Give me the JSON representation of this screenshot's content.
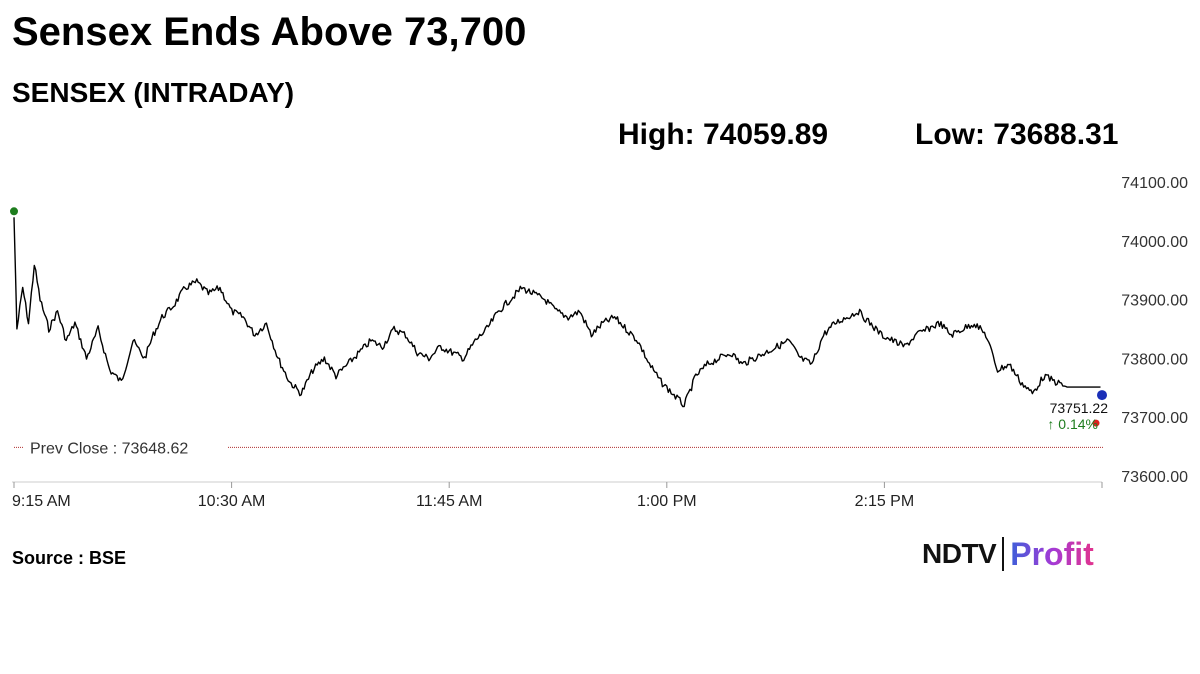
{
  "headline": "Sensex Ends Above 73,700",
  "subtitle": "SENSEX (INTRADAY)",
  "high_label": "High: 74059.89",
  "low_label": "Low: 73688.31",
  "source": "Source : BSE",
  "logo": {
    "ndtv": "NDTV",
    "profit": "Profit"
  },
  "colors": {
    "line": "#000000",
    "prev_close": "#b03030",
    "start_dot": "#1e7d1e",
    "end_dot_blue": "#1a2fb8",
    "end_dot_red": "#e02020",
    "change": "#1e7d1e"
  },
  "chart_data": {
    "type": "line",
    "xlabel": "",
    "ylabel": "",
    "ylim": [
      73600,
      74100
    ],
    "y_ticks": [
      "73600.00",
      "73700.00",
      "73800.00",
      "73900.00",
      "74000.00",
      "74100.00"
    ],
    "x_ticks": [
      "9:15 AM",
      "10:30 AM",
      "11:45 AM",
      "1:00 PM",
      "2:15 PM"
    ],
    "grid": false,
    "prev_close": 73648.62,
    "prev_close_label": "Prev Close : 73648.62",
    "last_value_label": "73751.22",
    "change_label": "↑ 0.14%",
    "series": [
      {
        "x": [
          "09:15",
          "09:16",
          "09:18",
          "09:20",
          "09:22",
          "09:24",
          "09:27",
          "09:30",
          "09:33",
          "09:36",
          "09:40",
          "09:44",
          "09:48",
          "09:52",
          "09:56",
          "10:00",
          "10:03",
          "10:06",
          "10:10",
          "10:14",
          "10:18",
          "10:22",
          "10:26",
          "10:30",
          "10:34",
          "10:38",
          "10:42",
          "10:46",
          "10:50",
          "10:54",
          "10:58",
          "11:02",
          "11:06",
          "11:10",
          "11:14",
          "11:18",
          "11:22",
          "11:26",
          "11:30",
          "11:34",
          "11:38",
          "11:42",
          "11:46",
          "11:50",
          "11:54",
          "11:58",
          "12:02",
          "12:06",
          "12:10",
          "12:14",
          "12:18",
          "12:22",
          "12:26",
          "12:30",
          "12:34",
          "12:38",
          "12:42",
          "12:46",
          "12:50",
          "12:54",
          "12:58",
          "13:02",
          "13:06",
          "13:10",
          "13:14",
          "13:18",
          "13:22",
          "13:26",
          "13:30",
          "13:34",
          "13:38",
          "13:42",
          "13:46",
          "13:50",
          "13:54",
          "13:58",
          "14:02",
          "14:06",
          "14:10",
          "14:14",
          "14:18",
          "14:22",
          "14:26",
          "14:30",
          "14:34",
          "14:38",
          "14:42",
          "14:46",
          "14:50",
          "14:54",
          "14:58",
          "15:02",
          "15:06",
          "15:10",
          "15:14",
          "15:18",
          "15:22",
          "15:26",
          "15:30"
        ],
        "values": [
          74040,
          73850,
          73920,
          73860,
          73960,
          73900,
          73850,
          73880,
          73830,
          73860,
          73800,
          73850,
          73780,
          73760,
          73830,
          73800,
          73840,
          73870,
          73890,
          73920,
          73930,
          73910,
          73920,
          73880,
          73870,
          73840,
          73860,
          73800,
          73760,
          73740,
          73780,
          73800,
          73770,
          73790,
          73810,
          73830,
          73820,
          73850,
          73840,
          73810,
          73800,
          73820,
          73810,
          73800,
          73830,
          73850,
          73880,
          73900,
          73920,
          73910,
          73900,
          73880,
          73870,
          73880,
          73840,
          73860,
          73870,
          73850,
          73830,
          73790,
          73760,
          73740,
          73720,
          73770,
          73790,
          73800,
          73810,
          73790,
          73800,
          73810,
          73820,
          73830,
          73800,
          73790,
          73840,
          73860,
          73870,
          73880,
          73860,
          73840,
          73830,
          73820,
          73840,
          73850,
          73860,
          73840,
          73850,
          73860,
          73840,
          73780,
          73790,
          73760,
          73740,
          73770,
          73760,
          73751.22,
          73751.22,
          73751.22,
          73751.22
        ]
      }
    ]
  }
}
